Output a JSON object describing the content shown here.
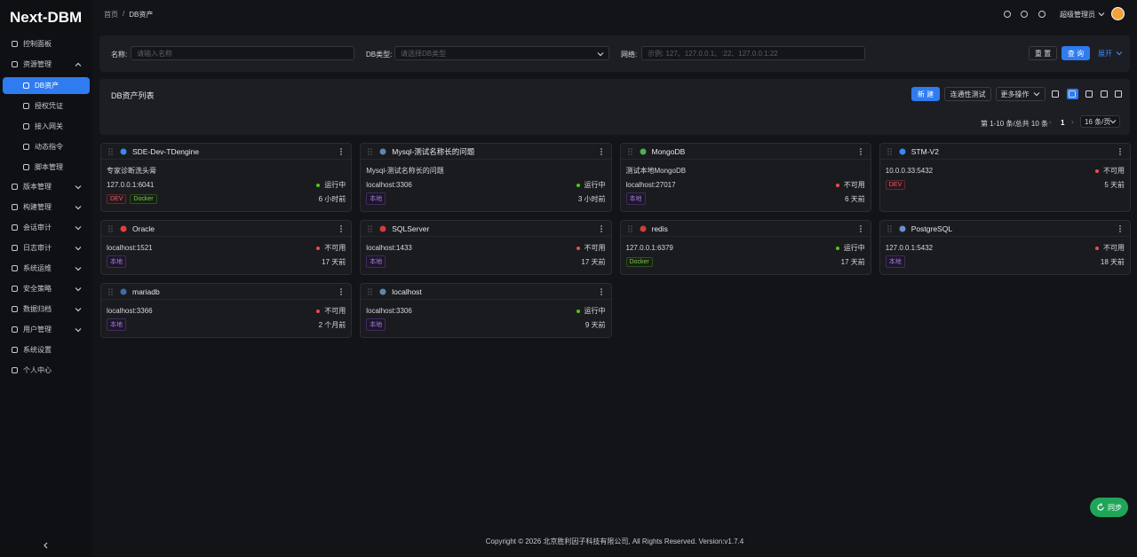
{
  "sidebar": {
    "logo": "Next-DBM",
    "menu": [
      {
        "label": "控制面板"
      },
      {
        "label": "资源管理",
        "expand": "up",
        "children": [
          {
            "label": "DB资产",
            "active": true
          },
          {
            "label": "授权凭证"
          },
          {
            "label": "接入网关"
          },
          {
            "label": "动态指令"
          },
          {
            "label": "脚本管理"
          }
        ]
      },
      {
        "label": "版本管理",
        "expand": "down"
      },
      {
        "label": "构建管理",
        "expand": "down"
      },
      {
        "label": "会话审计",
        "expand": "down"
      },
      {
        "label": "日志审计",
        "expand": "down"
      },
      {
        "label": "系统运维",
        "expand": "down"
      },
      {
        "label": "安全策略",
        "expand": "down"
      },
      {
        "label": "数据归档",
        "expand": "down"
      },
      {
        "label": "用户管理",
        "expand": "down"
      },
      {
        "label": "系统设置"
      },
      {
        "label": "个人中心"
      }
    ]
  },
  "header": {
    "breadcrumb": [
      "首页",
      "DB资产"
    ],
    "separator": "/",
    "user": "超级管理员"
  },
  "search": {
    "fields": [
      {
        "label": "名称:",
        "placeholder": "请输入名称"
      },
      {
        "label": "DB类型:",
        "placeholder": "请选择DB类型"
      },
      {
        "label": "网络:",
        "placeholder": "示例: 127、127.0.0.1、:22、127.0.0.1:22"
      }
    ],
    "reset": "重 置",
    "query": "查 询",
    "expand": "展开"
  },
  "list": {
    "title": "DB资产列表",
    "create": "新 建",
    "test": "连通性测试",
    "more": "更多操作",
    "pagination": {
      "summary": "第 1-10 条/总共 10 条",
      "page": 1,
      "page_size": "16 条/页"
    }
  },
  "cards": [
    {
      "name": "SDE-Dev-TDengine",
      "description": "专家诊断洗头膏",
      "address": "127.0.0.1:6041",
      "status": {
        "text": "运行中",
        "color": "green"
      },
      "tags": [
        {
          "text": "DEV",
          "color": "red"
        },
        {
          "text": "Docker",
          "color": "green"
        }
      ],
      "time": "6 小时前"
    },
    {
      "name": "Mysql-测试名称长的问题",
      "description": "Mysql-测试名称长的问题",
      "address": "localhost:3306",
      "status": {
        "text": "运行中",
        "color": "green"
      },
      "tags": [
        {
          "text": "本地",
          "color": "purple"
        }
      ],
      "time": "3 小时前"
    },
    {
      "name": "MongoDB",
      "description": "测试本地MongoDB",
      "address": "localhost:27017",
      "status": {
        "text": "不可用",
        "color": "red"
      },
      "tags": [
        {
          "text": "本地",
          "color": "purple"
        }
      ],
      "time": "6 天前"
    },
    {
      "name": "STM-V2",
      "address": "10.0.0.33:5432",
      "status": {
        "text": "不可用",
        "color": "red"
      },
      "tags": [
        {
          "text": "DEV",
          "color": "red"
        }
      ],
      "time": "5 天前"
    },
    {
      "name": "Oracle",
      "address": "localhost:1521",
      "status": {
        "text": "不可用",
        "color": "red"
      },
      "tags": [
        {
          "text": "本地",
          "color": "purple"
        }
      ],
      "time": "17 天前"
    },
    {
      "name": "SQLServer",
      "address": "localhost:1433",
      "status": {
        "text": "不可用",
        "color": "red"
      },
      "tags": [
        {
          "text": "本地",
          "color": "purple"
        }
      ],
      "time": "17 天前"
    },
    {
      "name": "redis",
      "address": "127.0.0.1:6379",
      "status": {
        "text": "运行中",
        "color": "green"
      },
      "tags": [
        {
          "text": "Docker",
          "color": "green"
        }
      ],
      "time": "17 天前"
    },
    {
      "name": "PostgreSQL",
      "address": "127.0.0.1:5432",
      "status": {
        "text": "不可用",
        "color": "red"
      },
      "tags": [
        {
          "text": "本地",
          "color": "purple"
        }
      ],
      "time": "18 天前"
    },
    {
      "name": "mariadb",
      "address": "localhost:3366",
      "status": {
        "text": "不可用",
        "color": "red"
      },
      "tags": [
        {
          "text": "本地",
          "color": "purple"
        }
      ],
      "time": "2 个月前"
    },
    {
      "name": "localhost",
      "address": "localhost:3306",
      "status": {
        "text": "运行中",
        "color": "green"
      },
      "tags": [
        {
          "text": "本地",
          "color": "purple"
        }
      ],
      "time": "9 天前"
    }
  ],
  "footer": "Copyright © 2026 北京胜利因子科技有限公司, All Rights Reserved. Version:v1.7.4",
  "sync": "同步"
}
